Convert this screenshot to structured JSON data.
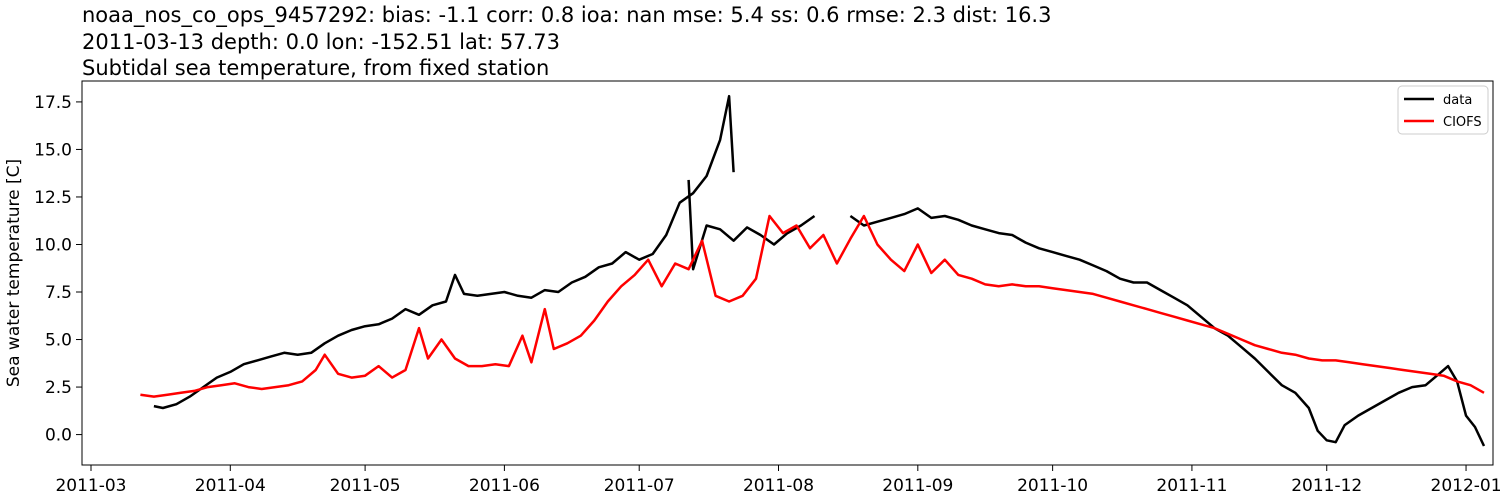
{
  "chart_data": {
    "type": "line",
    "title_lines": [
      "noaa_nos_co_ops_9457292: bias: -1.1  corr: 0.8  ioa: nan  mse: 5.4  ss: 0.6  rmse: 2.3  dist: 16.3",
      "2011-03-13 depth: 0.0 lon: -152.51 lat: 57.73",
      "Subtidal sea temperature, from fixed station"
    ],
    "xlabel": "",
    "ylabel": "Sea water temperature [C]",
    "x_ticks": [
      "2011-03",
      "2011-04",
      "2011-05",
      "2011-06",
      "2011-07",
      "2011-08",
      "2011-09",
      "2011-10",
      "2011-11",
      "2011-12",
      "2012-01"
    ],
    "y_ticks": [
      "0.0",
      "2.5",
      "5.0",
      "7.5",
      "10.0",
      "12.5",
      "15.0",
      "17.5"
    ],
    "xlim": [
      "2011-02-27",
      "2012-01-07"
    ],
    "ylim": [
      -1.6,
      18.6
    ],
    "grid": false,
    "legend_position": "upper right",
    "series": [
      {
        "name": "data",
        "color": "#000000",
        "segments": [
          [
            [
              "2011-03-15",
              1.5
            ],
            [
              "2011-03-17",
              1.4
            ],
            [
              "2011-03-20",
              1.6
            ],
            [
              "2011-03-23",
              2.0
            ],
            [
              "2011-03-26",
              2.5
            ],
            [
              "2011-03-29",
              3.0
            ],
            [
              "2011-04-01",
              3.3
            ],
            [
              "2011-04-04",
              3.7
            ],
            [
              "2011-04-07",
              3.9
            ],
            [
              "2011-04-10",
              4.1
            ],
            [
              "2011-04-13",
              4.3
            ],
            [
              "2011-04-16",
              4.2
            ],
            [
              "2011-04-19",
              4.3
            ],
            [
              "2011-04-22",
              4.8
            ],
            [
              "2011-04-25",
              5.2
            ],
            [
              "2011-04-28",
              5.5
            ],
            [
              "2011-05-01",
              5.7
            ],
            [
              "2011-05-04",
              5.8
            ],
            [
              "2011-05-07",
              6.1
            ],
            [
              "2011-05-10",
              6.6
            ],
            [
              "2011-05-13",
              6.3
            ],
            [
              "2011-05-16",
              6.8
            ],
            [
              "2011-05-19",
              7.0
            ],
            [
              "2011-05-21",
              8.4
            ],
            [
              "2011-05-23",
              7.4
            ],
            [
              "2011-05-26",
              7.3
            ],
            [
              "2011-05-29",
              7.4
            ],
            [
              "2011-06-01",
              7.5
            ],
            [
              "2011-06-04",
              7.3
            ],
            [
              "2011-06-07",
              7.2
            ],
            [
              "2011-06-10",
              7.6
            ],
            [
              "2011-06-13",
              7.5
            ],
            [
              "2011-06-16",
              8.0
            ],
            [
              "2011-06-19",
              8.3
            ],
            [
              "2011-06-22",
              8.8
            ],
            [
              "2011-06-25",
              9.0
            ],
            [
              "2011-06-28",
              9.6
            ],
            [
              "2011-07-01",
              9.2
            ],
            [
              "2011-07-04",
              9.5
            ],
            [
              "2011-07-07",
              10.5
            ],
            [
              "2011-07-10",
              12.2
            ],
            [
              "2011-07-13",
              12.7
            ],
            [
              "2011-07-16",
              13.6
            ],
            [
              "2011-07-19",
              15.5
            ],
            [
              "2011-07-21",
              17.8
            ],
            [
              "2011-07-22",
              13.8
            ]
          ],
          [
            [
              "2011-07-12",
              13.4
            ],
            [
              "2011-07-13",
              8.7
            ],
            [
              "2011-07-16",
              11.0
            ],
            [
              "2011-07-19",
              10.8
            ],
            [
              "2011-07-22",
              10.2
            ],
            [
              "2011-07-25",
              10.9
            ],
            [
              "2011-07-28",
              10.5
            ],
            [
              "2011-07-31",
              10.0
            ],
            [
              "2011-08-03",
              10.6
            ],
            [
              "2011-08-06",
              11.0
            ],
            [
              "2011-08-09",
              11.5
            ]
          ],
          [
            [
              "2011-08-17",
              11.5
            ],
            [
              "2011-08-20",
              11.0
            ],
            [
              "2011-08-23",
              11.2
            ],
            [
              "2011-08-26",
              11.4
            ],
            [
              "2011-08-29",
              11.6
            ],
            [
              "2011-09-01",
              11.9
            ],
            [
              "2011-09-04",
              11.4
            ],
            [
              "2011-09-07",
              11.5
            ],
            [
              "2011-09-10",
              11.3
            ],
            [
              "2011-09-13",
              11.0
            ],
            [
              "2011-09-16",
              10.8
            ],
            [
              "2011-09-19",
              10.6
            ],
            [
              "2011-09-22",
              10.5
            ],
            [
              "2011-09-25",
              10.1
            ],
            [
              "2011-09-28",
              9.8
            ],
            [
              "2011-10-01",
              9.6
            ],
            [
              "2011-10-04",
              9.4
            ],
            [
              "2011-10-07",
              9.2
            ],
            [
              "2011-10-10",
              8.9
            ],
            [
              "2011-10-13",
              8.6
            ],
            [
              "2011-10-16",
              8.2
            ],
            [
              "2011-10-19",
              8.0
            ],
            [
              "2011-10-22",
              8.0
            ],
            [
              "2011-10-25",
              7.6
            ],
            [
              "2011-10-28",
              7.2
            ],
            [
              "2011-10-31",
              6.8
            ],
            [
              "2011-11-03",
              6.2
            ],
            [
              "2011-11-06",
              5.6
            ],
            [
              "2011-11-09",
              5.2
            ],
            [
              "2011-11-12",
              4.6
            ],
            [
              "2011-11-15",
              4.0
            ],
            [
              "2011-11-18",
              3.3
            ],
            [
              "2011-11-21",
              2.6
            ],
            [
              "2011-11-24",
              2.2
            ],
            [
              "2011-11-27",
              1.4
            ],
            [
              "2011-11-29",
              0.2
            ],
            [
              "2011-12-01",
              -0.3
            ],
            [
              "2011-12-03",
              -0.4
            ],
            [
              "2011-12-05",
              0.5
            ],
            [
              "2011-12-08",
              1.0
            ],
            [
              "2011-12-11",
              1.4
            ],
            [
              "2011-12-14",
              1.8
            ],
            [
              "2011-12-17",
              2.2
            ],
            [
              "2011-12-20",
              2.5
            ],
            [
              "2011-12-23",
              2.6
            ],
            [
              "2011-12-26",
              3.2
            ],
            [
              "2011-12-28",
              3.6
            ],
            [
              "2011-12-30",
              2.8
            ],
            [
              "2012-01-01",
              1.0
            ],
            [
              "2012-01-03",
              0.4
            ],
            [
              "2012-01-05",
              -0.6
            ]
          ]
        ]
      },
      {
        "name": "CIOFS",
        "color": "#ff0000",
        "segments": [
          [
            [
              "2011-03-12",
              2.1
            ],
            [
              "2011-03-15",
              2.0
            ],
            [
              "2011-03-18",
              2.1
            ],
            [
              "2011-03-21",
              2.2
            ],
            [
              "2011-03-24",
              2.3
            ],
            [
              "2011-03-27",
              2.5
            ],
            [
              "2011-03-30",
              2.6
            ],
            [
              "2011-04-02",
              2.7
            ],
            [
              "2011-04-05",
              2.5
            ],
            [
              "2011-04-08",
              2.4
            ],
            [
              "2011-04-11",
              2.5
            ],
            [
              "2011-04-14",
              2.6
            ],
            [
              "2011-04-17",
              2.8
            ],
            [
              "2011-04-20",
              3.4
            ],
            [
              "2011-04-22",
              4.2
            ],
            [
              "2011-04-25",
              3.2
            ],
            [
              "2011-04-28",
              3.0
            ],
            [
              "2011-05-01",
              3.1
            ],
            [
              "2011-05-04",
              3.6
            ],
            [
              "2011-05-07",
              3.0
            ],
            [
              "2011-05-10",
              3.4
            ],
            [
              "2011-05-13",
              5.6
            ],
            [
              "2011-05-15",
              4.0
            ],
            [
              "2011-05-18",
              5.0
            ],
            [
              "2011-05-21",
              4.0
            ],
            [
              "2011-05-24",
              3.6
            ],
            [
              "2011-05-27",
              3.6
            ],
            [
              "2011-05-30",
              3.7
            ],
            [
              "2011-06-02",
              3.6
            ],
            [
              "2011-06-05",
              5.2
            ],
            [
              "2011-06-07",
              3.8
            ],
            [
              "2011-06-10",
              6.6
            ],
            [
              "2011-06-12",
              4.5
            ],
            [
              "2011-06-15",
              4.8
            ],
            [
              "2011-06-18",
              5.2
            ],
            [
              "2011-06-21",
              6.0
            ],
            [
              "2011-06-24",
              7.0
            ],
            [
              "2011-06-27",
              7.8
            ],
            [
              "2011-06-30",
              8.4
            ],
            [
              "2011-07-03",
              9.2
            ],
            [
              "2011-07-06",
              7.8
            ],
            [
              "2011-07-09",
              9.0
            ],
            [
              "2011-07-12",
              8.7
            ],
            [
              "2011-07-15",
              10.2
            ],
            [
              "2011-07-18",
              7.3
            ],
            [
              "2011-07-21",
              7.0
            ],
            [
              "2011-07-24",
              7.3
            ],
            [
              "2011-07-27",
              8.2
            ],
            [
              "2011-07-30",
              11.5
            ],
            [
              "2011-08-02",
              10.6
            ],
            [
              "2011-08-05",
              11.0
            ],
            [
              "2011-08-08",
              9.8
            ],
            [
              "2011-08-11",
              10.5
            ],
            [
              "2011-08-14",
              9.0
            ],
            [
              "2011-08-17",
              10.3
            ],
            [
              "2011-08-20",
              11.5
            ],
            [
              "2011-08-23",
              10.0
            ],
            [
              "2011-08-26",
              9.2
            ],
            [
              "2011-08-29",
              8.6
            ],
            [
              "2011-09-01",
              10.0
            ],
            [
              "2011-09-04",
              8.5
            ],
            [
              "2011-09-07",
              9.2
            ],
            [
              "2011-09-10",
              8.4
            ],
            [
              "2011-09-13",
              8.2
            ],
            [
              "2011-09-16",
              7.9
            ],
            [
              "2011-09-19",
              7.8
            ],
            [
              "2011-09-22",
              7.9
            ],
            [
              "2011-09-25",
              7.8
            ],
            [
              "2011-09-28",
              7.8
            ],
            [
              "2011-10-01",
              7.7
            ],
            [
              "2011-10-04",
              7.6
            ],
            [
              "2011-10-07",
              7.5
            ],
            [
              "2011-10-10",
              7.4
            ],
            [
              "2011-10-13",
              7.2
            ],
            [
              "2011-10-16",
              7.0
            ],
            [
              "2011-10-19",
              6.8
            ],
            [
              "2011-10-22",
              6.6
            ],
            [
              "2011-10-25",
              6.4
            ],
            [
              "2011-10-28",
              6.2
            ],
            [
              "2011-10-31",
              6.0
            ],
            [
              "2011-11-03",
              5.8
            ],
            [
              "2011-11-06",
              5.6
            ],
            [
              "2011-11-09",
              5.3
            ],
            [
              "2011-11-12",
              5.0
            ],
            [
              "2011-11-15",
              4.7
            ],
            [
              "2011-11-18",
              4.5
            ],
            [
              "2011-11-21",
              4.3
            ],
            [
              "2011-11-24",
              4.2
            ],
            [
              "2011-11-27",
              4.0
            ],
            [
              "2011-11-30",
              3.9
            ],
            [
              "2011-12-03",
              3.9
            ],
            [
              "2011-12-06",
              3.8
            ],
            [
              "2011-12-09",
              3.7
            ],
            [
              "2011-12-12",
              3.6
            ],
            [
              "2011-12-15",
              3.5
            ],
            [
              "2011-12-18",
              3.4
            ],
            [
              "2011-12-21",
              3.3
            ],
            [
              "2011-12-24",
              3.2
            ],
            [
              "2011-12-27",
              3.1
            ],
            [
              "2011-12-30",
              2.8
            ],
            [
              "2012-01-02",
              2.6
            ],
            [
              "2012-01-05",
              2.2
            ]
          ]
        ]
      }
    ]
  }
}
